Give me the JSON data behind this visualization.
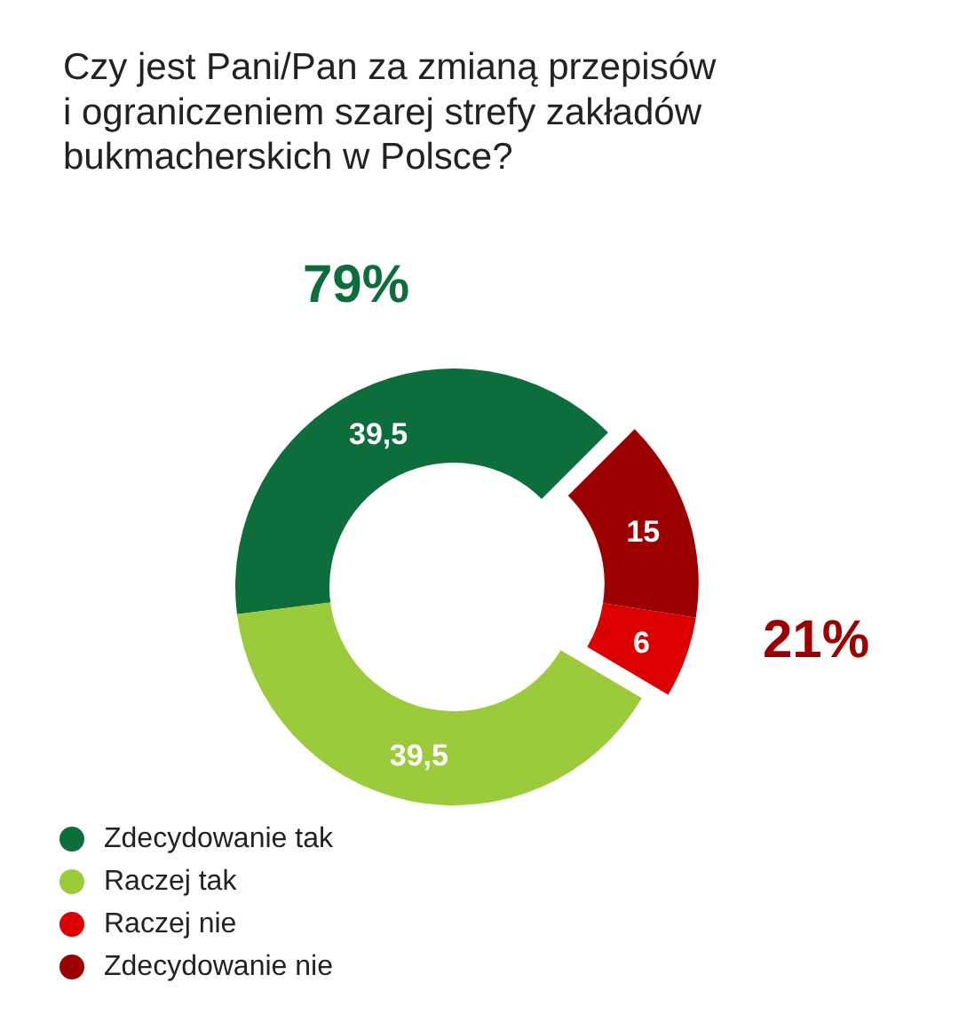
{
  "chart_data": {
    "type": "donut",
    "title": "Czy jest Pani/Pan za zmianą przepisów i ograniczeniem szarej strefy zakładów bukmacherskich w Polsce?",
    "categories": [
      "Zdecydowanie tak",
      "Raczej tak",
      "Raczej nie",
      "Zdecydowanie nie"
    ],
    "values": [
      39.5,
      39.5,
      6,
      15
    ],
    "colors": [
      "#0d6e3c",
      "#9bcb3b",
      "#dd0000",
      "#9c0000"
    ],
    "value_labels": [
      "39,5",
      "39,5",
      "6",
      "15"
    ],
    "annotations": [
      "79%",
      "21%"
    ],
    "legend": "bottom left"
  }
}
